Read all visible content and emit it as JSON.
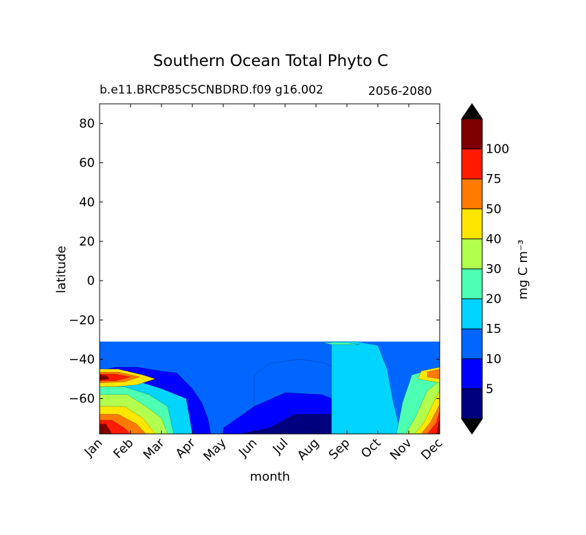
{
  "chart_data": {
    "type": "contour",
    "title": "Southern Ocean Total Phyto C",
    "subtitle_left": "b.e11.BRCP85C5CNBDRD.f09 g16.002",
    "subtitle_right": "2056-2080",
    "xlabel": "month",
    "ylabel": "latitude",
    "x_ticks": [
      "Jan",
      "Feb",
      "Mar",
      "Apr",
      "May",
      "Jun",
      "Jul",
      "Aug",
      "Sep",
      "Oct",
      "Nov",
      "Dec"
    ],
    "y_ticks": [
      "80",
      "60",
      "40",
      "20",
      "0",
      "−20",
      "−40",
      "−60"
    ],
    "xlim": [
      0,
      11
    ],
    "ylim": [
      -78,
      90
    ],
    "data_lat_range": [
      -78,
      -31
    ],
    "colorbar": {
      "label": "mg C m⁻³",
      "levels": [
        "5",
        "10",
        "15",
        "20",
        "30",
        "40",
        "50",
        "75",
        "100"
      ],
      "colors": [
        "#00007f",
        "#0000ff",
        "#0066ff",
        "#00d4ff",
        "#4dffb2",
        "#b2ff4d",
        "#ffe600",
        "#ff7a00",
        "#ff1a00",
        "#7f0000"
      ],
      "extend": "both",
      "under_color": "#000000",
      "over_color": "#000000"
    },
    "contour_bands": [
      {
        "level": 1,
        "upper": [
          [
            0,
            -46
          ],
          [
            0.5,
            -44
          ],
          [
            1.2,
            -44
          ],
          [
            2,
            -46
          ],
          [
            2.5,
            -47
          ],
          [
            3,
            -55
          ],
          [
            3.3,
            -62
          ],
          [
            3.5,
            -70
          ],
          [
            3.6,
            -78
          ]
        ]
      },
      {
        "level": 2,
        "upper": [
          [
            5.0,
            -48
          ],
          [
            5.5,
            -42
          ],
          [
            6.5,
            -40
          ],
          [
            7.3,
            -42
          ],
          [
            8.0,
            -48
          ],
          [
            8.6,
            -56
          ],
          [
            9.0,
            -65
          ],
          [
            9.3,
            -72
          ],
          [
            9.6,
            -78
          ]
        ]
      },
      {
        "level": 1,
        "upper": [
          [
            4.0,
            -75
          ],
          [
            5.0,
            -64
          ],
          [
            6.0,
            -57
          ],
          [
            7.2,
            -58
          ],
          [
            8.0,
            -63
          ],
          [
            9.0,
            -72
          ],
          [
            9.5,
            -78
          ]
        ]
      },
      {
        "level": 0,
        "upper": [
          [
            4.5,
            -78
          ],
          [
            5.5,
            -75
          ],
          [
            6.3,
            -68
          ],
          [
            7.5,
            -68
          ],
          [
            8.5,
            -72
          ],
          [
            9.0,
            -77
          ],
          [
            9.2,
            -78
          ]
        ]
      },
      {
        "level": 3,
        "upper": [
          [
            0,
            -52
          ],
          [
            1,
            -50
          ],
          [
            2,
            -55
          ],
          [
            2.8,
            -60
          ],
          [
            3,
            -78
          ]
        ]
      },
      {
        "level": 3,
        "upper": [
          [
            7.5,
            -31
          ],
          [
            8.3,
            -31
          ],
          [
            9.0,
            -33
          ],
          [
            9.3,
            -45
          ],
          [
            9.5,
            -62
          ],
          [
            9.7,
            -75
          ],
          [
            9.8,
            -78
          ]
        ]
      },
      {
        "level": 4,
        "upper": [
          [
            0,
            -54
          ],
          [
            0.8,
            -54
          ],
          [
            1.6,
            -58
          ],
          [
            2.2,
            -64
          ],
          [
            2.4,
            -78
          ]
        ]
      },
      {
        "level": 4,
        "upper": [
          [
            9.6,
            -78
          ],
          [
            9.8,
            -62
          ],
          [
            10.1,
            -48
          ],
          [
            11,
            -44
          ]
        ]
      },
      {
        "level": 5,
        "upper": [
          [
            0,
            -58
          ],
          [
            0.9,
            -58
          ],
          [
            1.5,
            -64
          ],
          [
            2.0,
            -70
          ],
          [
            2.2,
            -78
          ]
        ]
      },
      {
        "level": 5,
        "upper": [
          [
            9.9,
            -78
          ],
          [
            10.2,
            -70
          ],
          [
            10.6,
            -56
          ],
          [
            11,
            -51
          ]
        ]
      },
      {
        "level": 6,
        "upper": [
          [
            0,
            -64
          ],
          [
            0.8,
            -64
          ],
          [
            1.4,
            -70
          ],
          [
            1.8,
            -78
          ]
        ]
      },
      {
        "level": 6,
        "upper": [
          [
            10.2,
            -78
          ],
          [
            10.5,
            -72
          ],
          [
            10.8,
            -62
          ],
          [
            11,
            -56
          ]
        ]
      },
      {
        "level": 7,
        "upper": [
          [
            0,
            -68
          ],
          [
            0.6,
            -68
          ],
          [
            1.2,
            -73
          ],
          [
            1.5,
            -78
          ]
        ]
      },
      {
        "level": 7,
        "upper": [
          [
            10.4,
            -78
          ],
          [
            10.7,
            -72
          ],
          [
            11,
            -63
          ]
        ]
      },
      {
        "level": 8,
        "upper": [
          [
            0,
            -71
          ],
          [
            0.4,
            -71
          ],
          [
            0.8,
            -75
          ],
          [
            1.0,
            -78
          ]
        ]
      },
      {
        "level": 8,
        "upper": [
          [
            10.6,
            -78
          ],
          [
            10.9,
            -72
          ],
          [
            11,
            -66
          ]
        ]
      },
      {
        "level": 9,
        "upper": [
          [
            0,
            -73
          ],
          [
            0.2,
            -73
          ],
          [
            0.4,
            -78
          ]
        ]
      },
      {
        "level": 9,
        "upper": [
          [
            10.9,
            -78
          ],
          [
            11,
            -70
          ]
        ]
      }
    ],
    "contour_blobs": [
      {
        "level": 6,
        "points": [
          [
            0,
            -45
          ],
          [
            0.6,
            -45
          ],
          [
            1.4,
            -48
          ],
          [
            1.8,
            -50
          ],
          [
            1.2,
            -53
          ],
          [
            0.5,
            -54
          ],
          [
            0,
            -54
          ]
        ]
      },
      {
        "level": 7,
        "points": [
          [
            0,
            -46.5
          ],
          [
            0.6,
            -46.5
          ],
          [
            1.3,
            -49
          ],
          [
            0.8,
            -51.5
          ],
          [
            0,
            -52
          ]
        ]
      },
      {
        "level": 8,
        "points": [
          [
            0,
            -47.5
          ],
          [
            0.5,
            -47.5
          ],
          [
            1.0,
            -49
          ],
          [
            0.5,
            -51
          ],
          [
            0,
            -51
          ]
        ]
      },
      {
        "level": 9,
        "points": [
          [
            0,
            -48
          ],
          [
            0.25,
            -48.5
          ],
          [
            0.3,
            -50
          ],
          [
            0,
            -50.5
          ]
        ]
      },
      {
        "level": 6,
        "points": [
          [
            11,
            -44
          ],
          [
            10.4,
            -46
          ],
          [
            10.3,
            -50
          ],
          [
            11,
            -52
          ]
        ]
      },
      {
        "level": 7,
        "points": [
          [
            11,
            -45
          ],
          [
            10.6,
            -46.5
          ],
          [
            10.6,
            -49
          ],
          [
            11,
            -50
          ]
        ]
      },
      {
        "level": 4,
        "points": [
          [
            7.2,
            -31.5
          ],
          [
            8.0,
            -31.5
          ],
          [
            8.4,
            -32.5
          ],
          [
            7.5,
            -32.5
          ]
        ]
      }
    ]
  }
}
